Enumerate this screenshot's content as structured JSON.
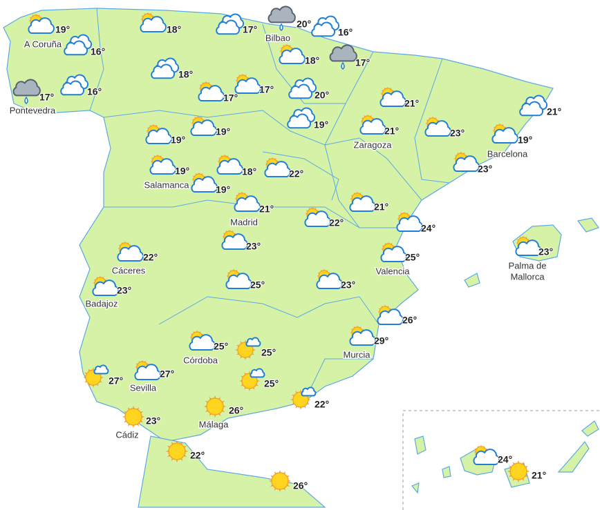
{
  "stations": [
    {
      "label": "A Coruña",
      "icon": "sun-cloud",
      "temp": "19°"
    },
    {
      "icon": "cloud",
      "temp": "16°"
    },
    {
      "label": "Pontevedra",
      "icon": "rain",
      "temp": "17°"
    },
    {
      "icon": "cloud",
      "temp": "16°"
    },
    {
      "icon": "sun-cloud",
      "temp": "18°"
    },
    {
      "icon": "cloud",
      "temp": "17°"
    },
    {
      "label": "Bilbao",
      "icon": "rain",
      "temp": "20°"
    },
    {
      "icon": "cloud",
      "temp": "16°"
    },
    {
      "icon": "sun-cloud",
      "temp": "18°"
    },
    {
      "icon": "rain",
      "temp": "17°"
    },
    {
      "icon": "cloud",
      "temp": "18°"
    },
    {
      "icon": "sun-cloud",
      "temp": "17°"
    },
    {
      "icon": "sun-cloud",
      "temp": "17°"
    },
    {
      "icon": "cloud",
      "temp": "20°"
    },
    {
      "icon": "cloud",
      "temp": "19°"
    },
    {
      "icon": "sun-cloud",
      "temp": "21°"
    },
    {
      "icon": "cloud",
      "temp": "21°"
    },
    {
      "icon": "sun-cloud",
      "temp": "19°"
    },
    {
      "icon": "sun-cloud",
      "temp": "19°"
    },
    {
      "label": "Zaragoza",
      "icon": "sun-cloud",
      "temp": "21°"
    },
    {
      "icon": "sun-cloud",
      "temp": "23°"
    },
    {
      "label": "Barcelona",
      "icon": "sun-cloud",
      "temp": "19°"
    },
    {
      "label": "Salamanca",
      "icon": "sun-cloud",
      "temp": "19°"
    },
    {
      "icon": "sun-cloud",
      "temp": "19°"
    },
    {
      "icon": "sun-cloud",
      "temp": "18°"
    },
    {
      "icon": "sun-cloud",
      "temp": "22°"
    },
    {
      "icon": "sun-cloud",
      "temp": "23°"
    },
    {
      "label": "Madrid",
      "icon": "sun-cloud",
      "temp": "21°"
    },
    {
      "icon": "sun-cloud",
      "temp": "21°"
    },
    {
      "icon": "sun-cloud",
      "temp": "22°"
    },
    {
      "icon": "sun-cloud",
      "temp": "24°"
    },
    {
      "icon": "sun-cloud",
      "temp": "23°"
    },
    {
      "label": "Cáceres",
      "icon": "sun-cloud",
      "temp": "22°"
    },
    {
      "label": "Valencia",
      "icon": "sun-cloud",
      "temp": "25°"
    },
    {
      "label": [
        "Palma de",
        "Mallorca"
      ],
      "icon": "sun-cloud",
      "temp": "23°"
    },
    {
      "label": "Badajoz",
      "icon": "sun-cloud",
      "temp": "23°"
    },
    {
      "icon": "sun-cloud",
      "temp": "25°"
    },
    {
      "icon": "sun-cloud",
      "temp": "23°"
    },
    {
      "icon": "sun-cloud",
      "temp": "26°"
    },
    {
      "label": "Córdoba",
      "icon": "sun-cloud",
      "temp": "25°"
    },
    {
      "icon": "sun-small-cloud",
      "temp": "25°"
    },
    {
      "label": "Murcia",
      "icon": "sun-cloud",
      "temp": "29°"
    },
    {
      "icon": "sun-small-cloud",
      "temp": "27°"
    },
    {
      "label": "Sevilla",
      "icon": "sun-cloud",
      "temp": "27°"
    },
    {
      "icon": "sun-small-cloud",
      "temp": "25°"
    },
    {
      "icon": "sun-small-cloud",
      "temp": "22°"
    },
    {
      "label": "Cádiz",
      "icon": "sun",
      "temp": "23°"
    },
    {
      "label": "Málaga",
      "icon": "sun",
      "temp": "26°"
    },
    {
      "icon": "sun",
      "temp": "22°"
    },
    {
      "icon": "sun-cloud",
      "temp": "24°"
    },
    {
      "icon": "sun",
      "temp": "21°"
    },
    {
      "icon": "sun",
      "temp": "26°"
    }
  ]
}
